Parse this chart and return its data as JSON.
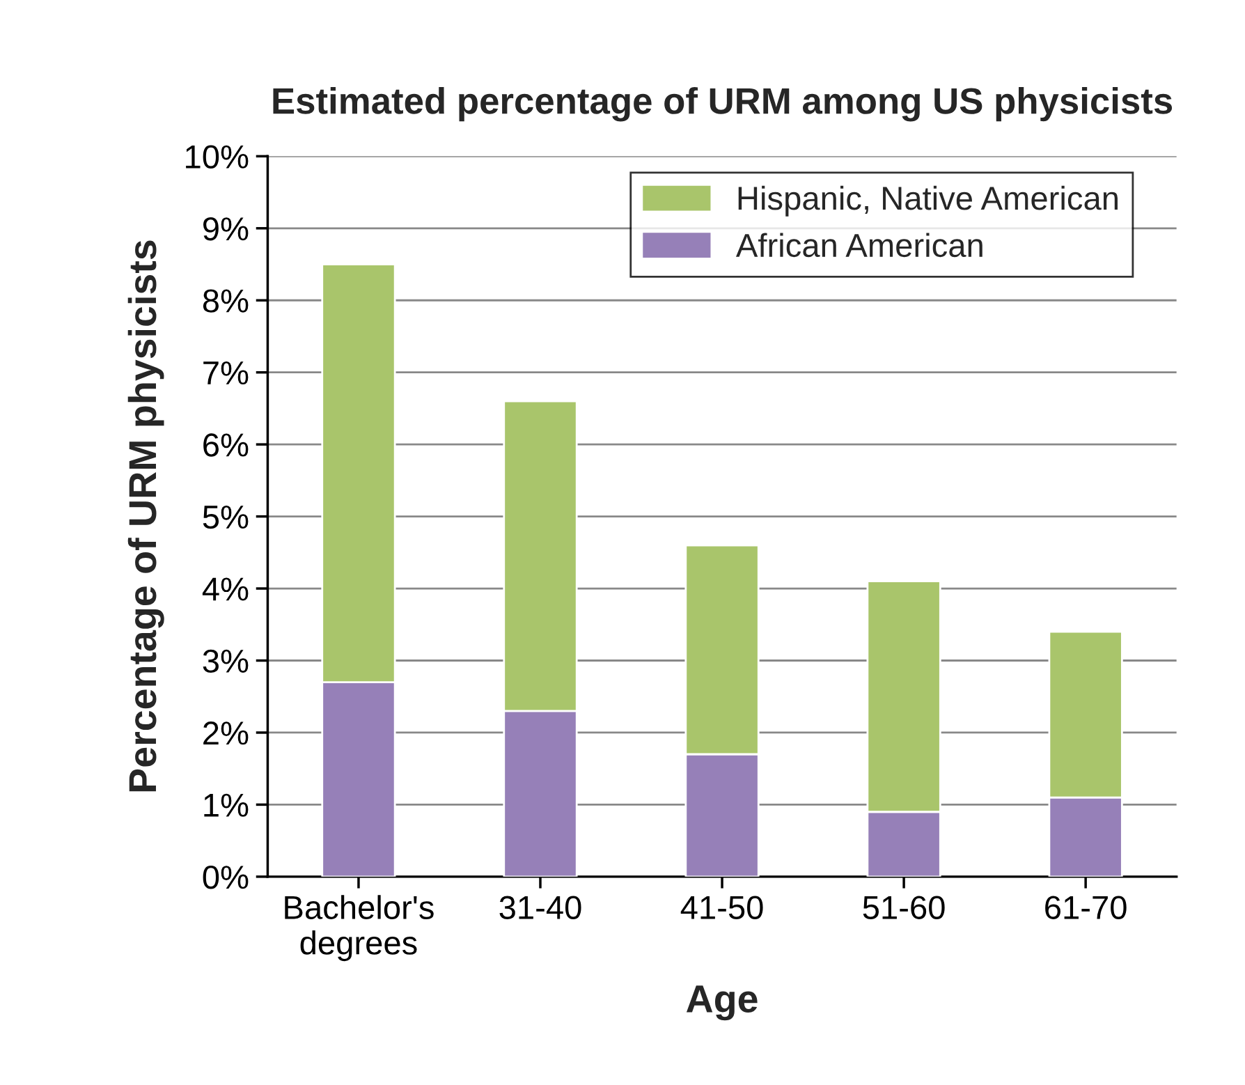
{
  "chart_data": {
    "type": "bar",
    "title": "Estimated percentage of URM among US physicists",
    "xlabel": "Age",
    "ylabel": "Percentage of URM physicists",
    "categories": [
      "Bachelor's\ndegrees",
      "31-40",
      "41-50",
      "51-60",
      "61-70"
    ],
    "stacked": true,
    "series": [
      {
        "name": "African American",
        "color": "#9680b8",
        "values": [
          2.7,
          2.3,
          1.7,
          0.9,
          1.1
        ]
      },
      {
        "name": "Hispanic, Native American",
        "color": "#a9c56b",
        "values": [
          5.8,
          4.3,
          2.9,
          3.2,
          2.3
        ]
      }
    ],
    "ylim": [
      0,
      10
    ],
    "yticks": [
      {
        "value": 0,
        "label": "0%"
      },
      {
        "value": 1,
        "label": "1%"
      },
      {
        "value": 2,
        "label": "2%"
      },
      {
        "value": 3,
        "label": "3%"
      },
      {
        "value": 4,
        "label": "4%"
      },
      {
        "value": 5,
        "label": "5%"
      },
      {
        "value": 6,
        "label": "6%"
      },
      {
        "value": 7,
        "label": "7%"
      },
      {
        "value": 8,
        "label": "8%"
      },
      {
        "value": 9,
        "label": "9%"
      },
      {
        "value": 10,
        "label": "10%"
      }
    ],
    "grid": "y",
    "legend": "top right"
  }
}
